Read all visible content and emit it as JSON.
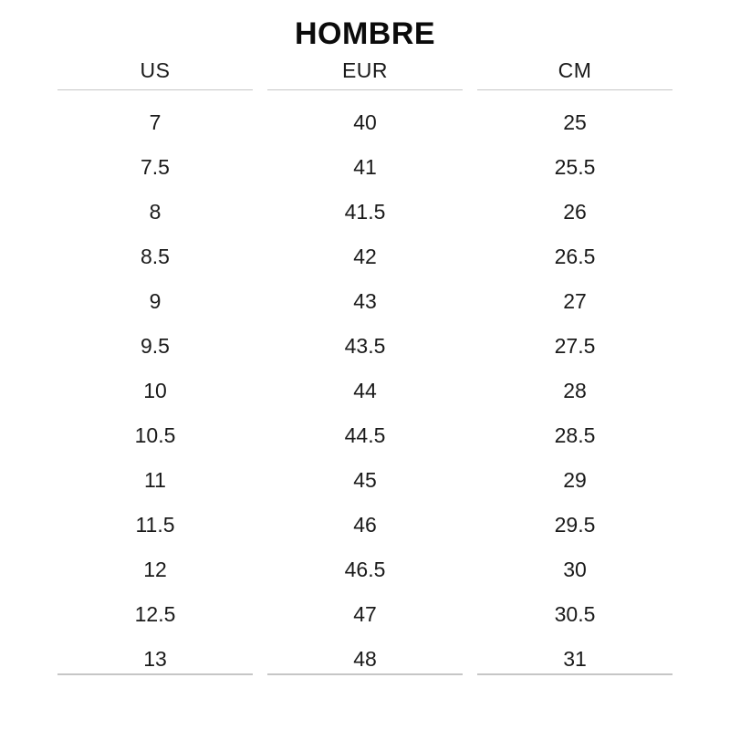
{
  "title": "HOMBRE",
  "table": {
    "headers": [
      "US",
      "EUR",
      "CM"
    ],
    "rows": [
      [
        "7",
        "40",
        "25"
      ],
      [
        "7.5",
        "41",
        "25.5"
      ],
      [
        "8",
        "41.5",
        "26"
      ],
      [
        "8.5",
        "42",
        "26.5"
      ],
      [
        "9",
        "43",
        "27"
      ],
      [
        "9.5",
        "43.5",
        "27.5"
      ],
      [
        "10",
        "44",
        "28"
      ],
      [
        "10.5",
        "44.5",
        "28.5"
      ],
      [
        "11",
        "45",
        "29"
      ],
      [
        "11.5",
        "46",
        "29.5"
      ],
      [
        "12",
        "46.5",
        "30"
      ],
      [
        "12.5",
        "47",
        "30.5"
      ],
      [
        "13",
        "48",
        "31"
      ]
    ]
  },
  "colors": {
    "background": "#ffffff",
    "title_text": "#0b0b0b",
    "body_text": "#1a1a1a",
    "rule": "#c6c6c6"
  }
}
